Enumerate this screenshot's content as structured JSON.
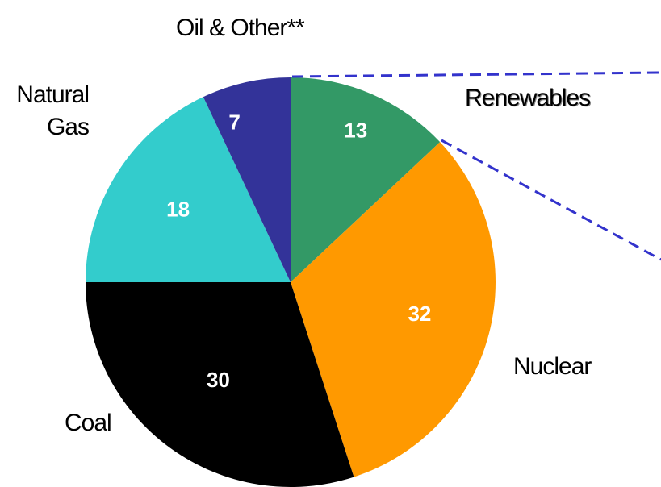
{
  "chart_data": {
    "type": "pie",
    "categories": [
      "Renewables",
      "Nuclear",
      "Coal",
      "Natural Gas",
      "Oil & Other**"
    ],
    "values": [
      13,
      32,
      30,
      18,
      7
    ],
    "colors": [
      "#339966",
      "#ff9900",
      "#000000",
      "#33cccc",
      "#333399"
    ]
  }
}
